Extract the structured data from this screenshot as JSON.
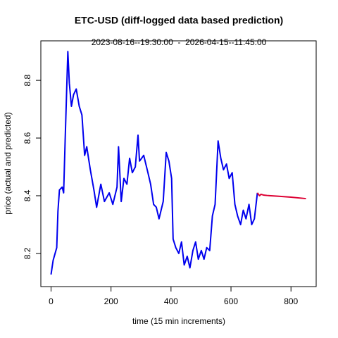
{
  "chart_data": {
    "type": "line",
    "title": "ETC-USD (diff-logged data based prediction)",
    "subtitle": "2023-08-16--19:30:00  -  2026-04-15--11:45:00",
    "x_label": "time (15 min increments)",
    "y_label": "price (actual and predicted)",
    "xlim": [
      -34,
      884
    ],
    "ylim": [
      8.085,
      8.937
    ],
    "xticks": [
      0,
      200,
      400,
      600,
      800
    ],
    "yticks": [
      8.2,
      8.4,
      8.6,
      8.8
    ],
    "grid": false,
    "series": [
      {
        "color": "#0000ee",
        "x": [
          0,
          7,
          19,
          23,
          28,
          37,
          42,
          47,
          56,
          61,
          68,
          75,
          84,
          94,
          103,
          112,
          119,
          131,
          143,
          152,
          166,
          178,
          194,
          206,
          220,
          225,
          234,
          243,
          253,
          262,
          271,
          281,
          290,
          295,
          309,
          323,
          332,
          342,
          351,
          360,
          374,
          384,
          393,
          402,
          407,
          416,
          426,
          435,
          444,
          454,
          463,
          473,
          482,
          491,
          501,
          510,
          519,
          529,
          538,
          547,
          557,
          566,
          575,
          585,
          594,
          604,
          613,
          622,
          632,
          641,
          650,
          660,
          669,
          678,
          688
        ],
        "values": [
          8.127,
          8.176,
          8.22,
          8.346,
          8.42,
          8.43,
          8.41,
          8.59,
          8.9,
          8.79,
          8.71,
          8.75,
          8.77,
          8.71,
          8.68,
          8.54,
          8.57,
          8.49,
          8.42,
          8.36,
          8.44,
          8.38,
          8.41,
          8.37,
          8.43,
          8.57,
          8.38,
          8.46,
          8.44,
          8.53,
          8.48,
          8.5,
          8.61,
          8.52,
          8.54,
          8.48,
          8.44,
          8.37,
          8.36,
          8.32,
          8.38,
          8.55,
          8.52,
          8.46,
          8.25,
          8.22,
          8.2,
          8.24,
          8.16,
          8.19,
          8.15,
          8.21,
          8.24,
          8.18,
          8.21,
          8.18,
          8.22,
          8.21,
          8.33,
          8.37,
          8.59,
          8.53,
          8.49,
          8.51,
          8.46,
          8.48,
          8.37,
          8.33,
          8.3,
          8.35,
          8.32,
          8.37,
          8.3,
          8.32,
          8.41
        ]
      },
      {
        "color": "#dd0033",
        "x": [
          688,
          695,
          700,
          710,
          720,
          760,
          800,
          850
        ],
        "values": [
          8.41,
          8.4,
          8.405,
          8.402,
          8.401,
          8.398,
          8.395,
          8.39
        ]
      }
    ]
  }
}
